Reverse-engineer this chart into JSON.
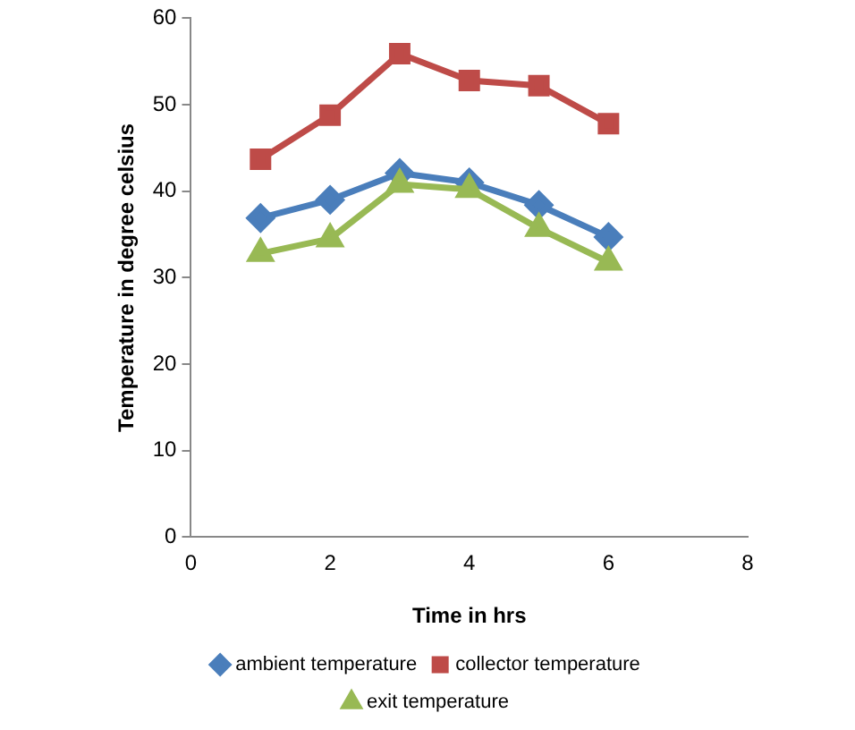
{
  "chart_data": {
    "type": "line",
    "xlabel": "Time in hrs",
    "ylabel": "Temperature in degree celsius",
    "x": [
      1,
      2,
      3,
      4,
      5,
      6
    ],
    "series": [
      {
        "name": "ambient temperature",
        "color": "#4a7ebb",
        "marker": "diamond",
        "values": [
          36.9,
          39,
          42.1,
          41,
          38.4,
          34.7
        ]
      },
      {
        "name": "collector temperature",
        "color": "#be4b48",
        "marker": "square",
        "values": [
          43.7,
          48.8,
          55.9,
          52.8,
          52.2,
          47.8
        ]
      },
      {
        "name": "exit temperature",
        "color": "#98b954",
        "marker": "triangle",
        "values": [
          32.8,
          34.5,
          40.8,
          40.2,
          35.7,
          31.8
        ]
      }
    ],
    "xlim": [
      0,
      8
    ],
    "xticks": [
      0,
      2,
      4,
      6,
      8
    ],
    "ylim": [
      0,
      60
    ],
    "yticks": [
      0,
      10,
      20,
      30,
      40,
      50,
      60
    ],
    "grid": false,
    "legend": "bottom",
    "line_style": "solid"
  }
}
